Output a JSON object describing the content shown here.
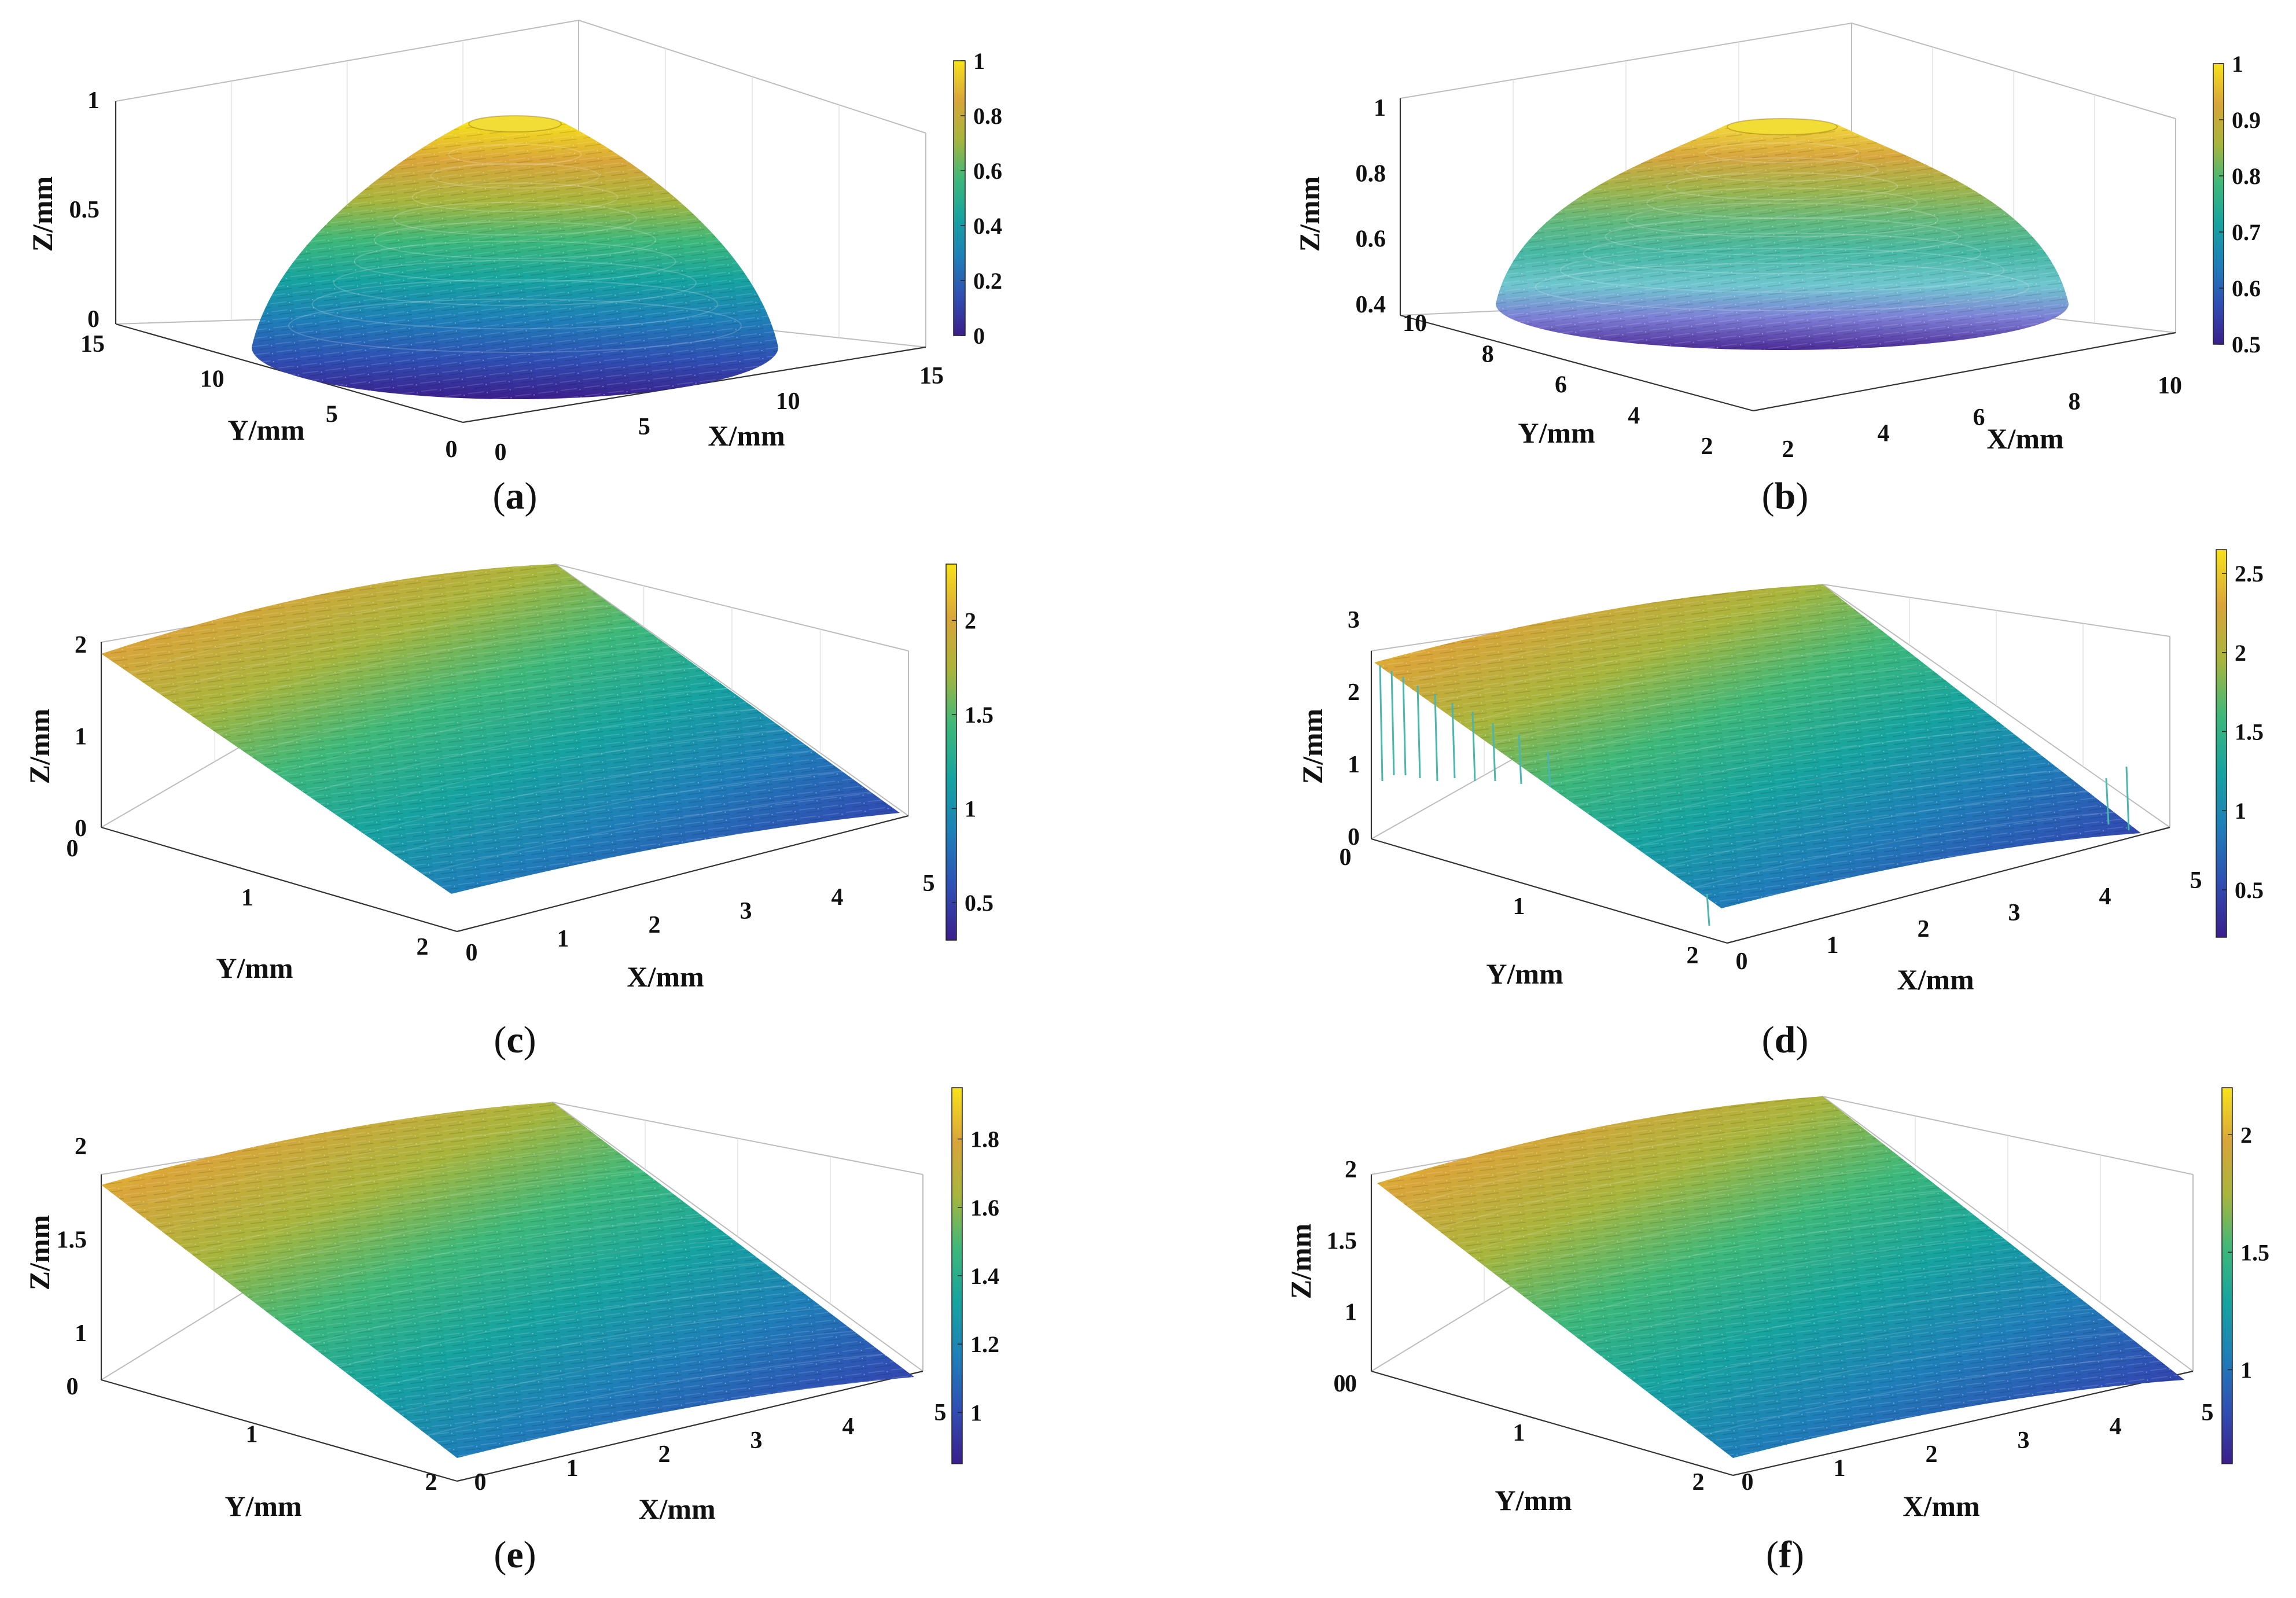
{
  "figure": {
    "panels": [
      {
        "id": "a",
        "caption_letter": "a",
        "shape": "dome"
      },
      {
        "id": "b",
        "caption_letter": "b",
        "shape": "dome"
      },
      {
        "id": "c",
        "caption_letter": "c",
        "shape": "slope"
      },
      {
        "id": "d",
        "caption_letter": "d",
        "shape": "slope"
      },
      {
        "id": "e",
        "caption_letter": "e",
        "shape": "slope"
      },
      {
        "id": "f",
        "caption_letter": "f",
        "shape": "slope"
      }
    ]
  },
  "colormap": [
    "#3b1e8c",
    "#2f4fb3",
    "#1e7fb8",
    "#16a3a0",
    "#3db87a",
    "#a8b53c",
    "#d9a53a",
    "#f7e21a"
  ],
  "chart_data": [
    {
      "type": "surface",
      "panel": "a",
      "xlabel": "X/mm",
      "ylabel": "Y/mm",
      "zlabel": "Z/mm",
      "x_ticks": [
        "0",
        "5",
        "10",
        "15"
      ],
      "y_ticks": [
        "0",
        "5",
        "10",
        "15"
      ],
      "z_ticks": [
        "0",
        "0.5",
        "1"
      ],
      "colorbar_ticks": [
        "0",
        "0.2",
        "0.4",
        "0.6",
        "0.8",
        "1"
      ],
      "xlim": [
        0,
        15
      ],
      "ylim": [
        0,
        15
      ],
      "zlim": [
        0,
        1
      ],
      "clim": [
        0,
        1
      ]
    },
    {
      "type": "surface",
      "panel": "b",
      "xlabel": "X/mm",
      "ylabel": "Y/mm",
      "zlabel": "Z/mm",
      "x_ticks": [
        "2",
        "4",
        "6",
        "8",
        "10"
      ],
      "y_ticks": [
        "2",
        "4",
        "6",
        "8",
        "10"
      ],
      "z_ticks": [
        "0.4",
        "0.6",
        "0.8",
        "1"
      ],
      "colorbar_ticks": [
        "0.5",
        "0.6",
        "0.7",
        "0.8",
        "0.9",
        "1"
      ],
      "xlim": [
        2,
        11
      ],
      "ylim": [
        2,
        11
      ],
      "zlim": [
        0.4,
        1
      ],
      "clim": [
        0.5,
        1
      ]
    },
    {
      "type": "surface",
      "panel": "c",
      "xlabel": "X/mm",
      "ylabel": "Y/mm",
      "zlabel": "Z/mm",
      "x_ticks": [
        "0",
        "1",
        "2",
        "3",
        "4",
        "5"
      ],
      "y_ticks": [
        "0",
        "1",
        "2"
      ],
      "z_ticks": [
        "0",
        "1",
        "2"
      ],
      "colorbar_ticks": [
        "0.5",
        "1",
        "1.5",
        "2"
      ],
      "xlim": [
        0,
        5
      ],
      "ylim": [
        0,
        2
      ],
      "zlim": [
        0,
        2.3
      ],
      "clim": [
        0.3,
        2.3
      ]
    },
    {
      "type": "surface",
      "panel": "d",
      "xlabel": "X/mm",
      "ylabel": "Y/mm",
      "zlabel": "Z/mm",
      "x_ticks": [
        "0",
        "1",
        "2",
        "3",
        "4",
        "5"
      ],
      "y_ticks": [
        "0",
        "1",
        "2"
      ],
      "z_ticks": [
        "0",
        "1",
        "2",
        "3"
      ],
      "colorbar_ticks": [
        "0.5",
        "1",
        "1.5",
        "2",
        "2.5"
      ],
      "xlim": [
        0,
        5
      ],
      "ylim": [
        0,
        2
      ],
      "zlim": [
        0,
        3
      ],
      "clim": [
        0.2,
        2.65
      ]
    },
    {
      "type": "surface",
      "panel": "e",
      "xlabel": "X/mm",
      "ylabel": "Y/mm",
      "zlabel": "Z/mm",
      "x_ticks": [
        "0",
        "1",
        "2",
        "3",
        "4",
        "5"
      ],
      "y_ticks": [
        "0",
        "1",
        "2"
      ],
      "z_ticks": [
        "1",
        "1.5",
        "2"
      ],
      "colorbar_ticks": [
        "1",
        "1.2",
        "1.4",
        "1.6",
        "1.8"
      ],
      "xlim": [
        0,
        5
      ],
      "ylim": [
        0,
        2
      ],
      "zlim": [
        0.8,
        2
      ],
      "clim": [
        0.85,
        1.95
      ]
    },
    {
      "type": "surface",
      "panel": "f",
      "xlabel": "X/mm",
      "ylabel": "Y/mm",
      "zlabel": "Z/mm",
      "x_ticks": [
        "0",
        "1",
        "2",
        "3",
        "4",
        "5"
      ],
      "y_ticks": [
        "0",
        "1",
        "2"
      ],
      "z_ticks": [
        "0",
        "1",
        "1.5",
        "2"
      ],
      "colorbar_ticks": [
        "1",
        "1.5",
        "2"
      ],
      "xlim": [
        0,
        5
      ],
      "ylim": [
        0,
        2
      ],
      "zlim": [
        0,
        2.2
      ],
      "clim": [
        0.6,
        2.2
      ]
    }
  ]
}
